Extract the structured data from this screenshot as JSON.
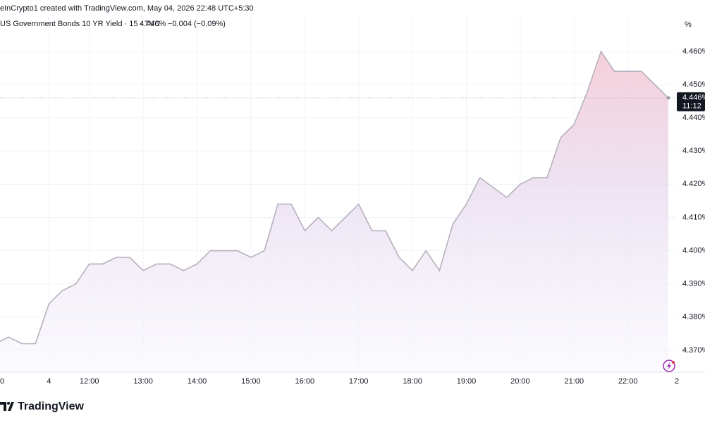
{
  "chart_data": {
    "type": "area",
    "header": "eInCrypto1 created with TradingView.com, May 04, 2026 22:48 UTC+5:30",
    "legend": {
      "name": "US Government Bonds 10 YR Yield · 15 · TVC",
      "value": "4.446%",
      "change": "−0.004 (−0.09%)"
    },
    "unit_label": "%",
    "brand": "TradingView",
    "categories": [
      "0",
      null,
      null,
      null,
      "4",
      null,
      null,
      "12:00",
      null,
      null,
      null,
      "13:00",
      null,
      null,
      null,
      "14:00",
      null,
      null,
      null,
      "15:00",
      null,
      null,
      null,
      "16:00",
      null,
      null,
      null,
      "17:00",
      null,
      null,
      null,
      "18:00",
      null,
      null,
      null,
      "19:00",
      null,
      null,
      null,
      "20:00",
      null,
      null,
      null,
      "21:00",
      null,
      null,
      null,
      "22:00",
      null,
      null,
      null,
      "2"
    ],
    "values": [
      4.372,
      4.374,
      4.372,
      4.372,
      4.384,
      4.388,
      4.39,
      4.396,
      4.396,
      4.398,
      4.398,
      4.394,
      4.396,
      4.396,
      4.394,
      4.396,
      4.4,
      4.4,
      4.4,
      4.398,
      4.4,
      4.414,
      4.414,
      4.406,
      4.41,
      4.406,
      4.41,
      4.414,
      4.406,
      4.406,
      4.398,
      4.394,
      4.4,
      4.394,
      4.408,
      4.414,
      4.422,
      4.419,
      4.416,
      4.42,
      4.422,
      4.422,
      4.434,
      4.438,
      4.448,
      4.46,
      4.454,
      4.454,
      4.454,
      4.45,
      4.446,
      null
    ],
    "color": "#b7b0bd",
    "ylim": [
      4.3634,
      4.4708
    ],
    "yticks": [
      {
        "value": 4.37,
        "label": "4.370%"
      },
      {
        "value": 4.38,
        "label": "4.380%"
      },
      {
        "value": 4.39,
        "label": "4.390%"
      },
      {
        "value": 4.4,
        "label": "4.400%"
      },
      {
        "value": 4.41,
        "label": "4.410%"
      },
      {
        "value": 4.42,
        "label": "4.420%"
      },
      {
        "value": 4.43,
        "label": "4.430%"
      },
      {
        "value": 4.44,
        "label": "4.440%"
      },
      {
        "value": 4.45,
        "label": "4.450%"
      },
      {
        "value": 4.46,
        "label": "4.460%"
      }
    ],
    "last_price": {
      "value": 4.446,
      "label": "4.446%",
      "countdown": "11:12"
    },
    "grid": true
  }
}
